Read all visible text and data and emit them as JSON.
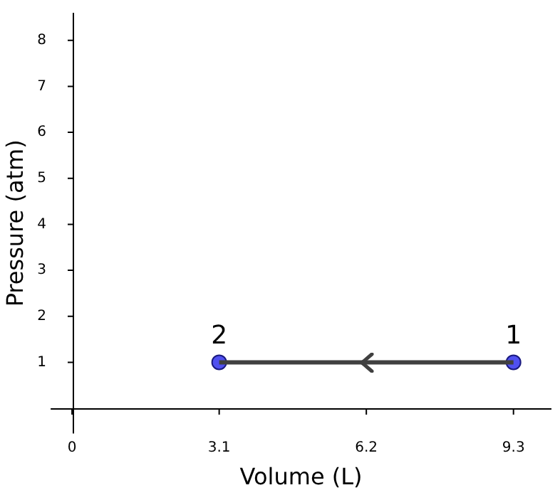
{
  "chart_data": {
    "type": "line",
    "xlabel": "Volume (L)",
    "ylabel": "Pressure (atm)",
    "xlim": [
      -0.45,
      10.1
    ],
    "ylim": [
      -0.55,
      8.6
    ],
    "xticks": [
      0,
      3.1,
      6.2,
      9.3
    ],
    "yticks": [
      1,
      2,
      3,
      4,
      5,
      6,
      7,
      8
    ],
    "grid": false,
    "legend": false,
    "x": [
      9.3,
      3.1
    ],
    "series": [
      {
        "type": "line",
        "color": "#404040",
        "values": [
          1,
          1
        ],
        "marker": "none"
      },
      {
        "type": "scatter",
        "color": "#5050f0",
        "values": [
          1,
          1
        ],
        "marker": "circle"
      }
    ],
    "annotations": [
      {
        "text": "1",
        "x": 9.3,
        "y": 1
      },
      {
        "text": "2",
        "x": 3.1,
        "y": 1
      }
    ]
  }
}
